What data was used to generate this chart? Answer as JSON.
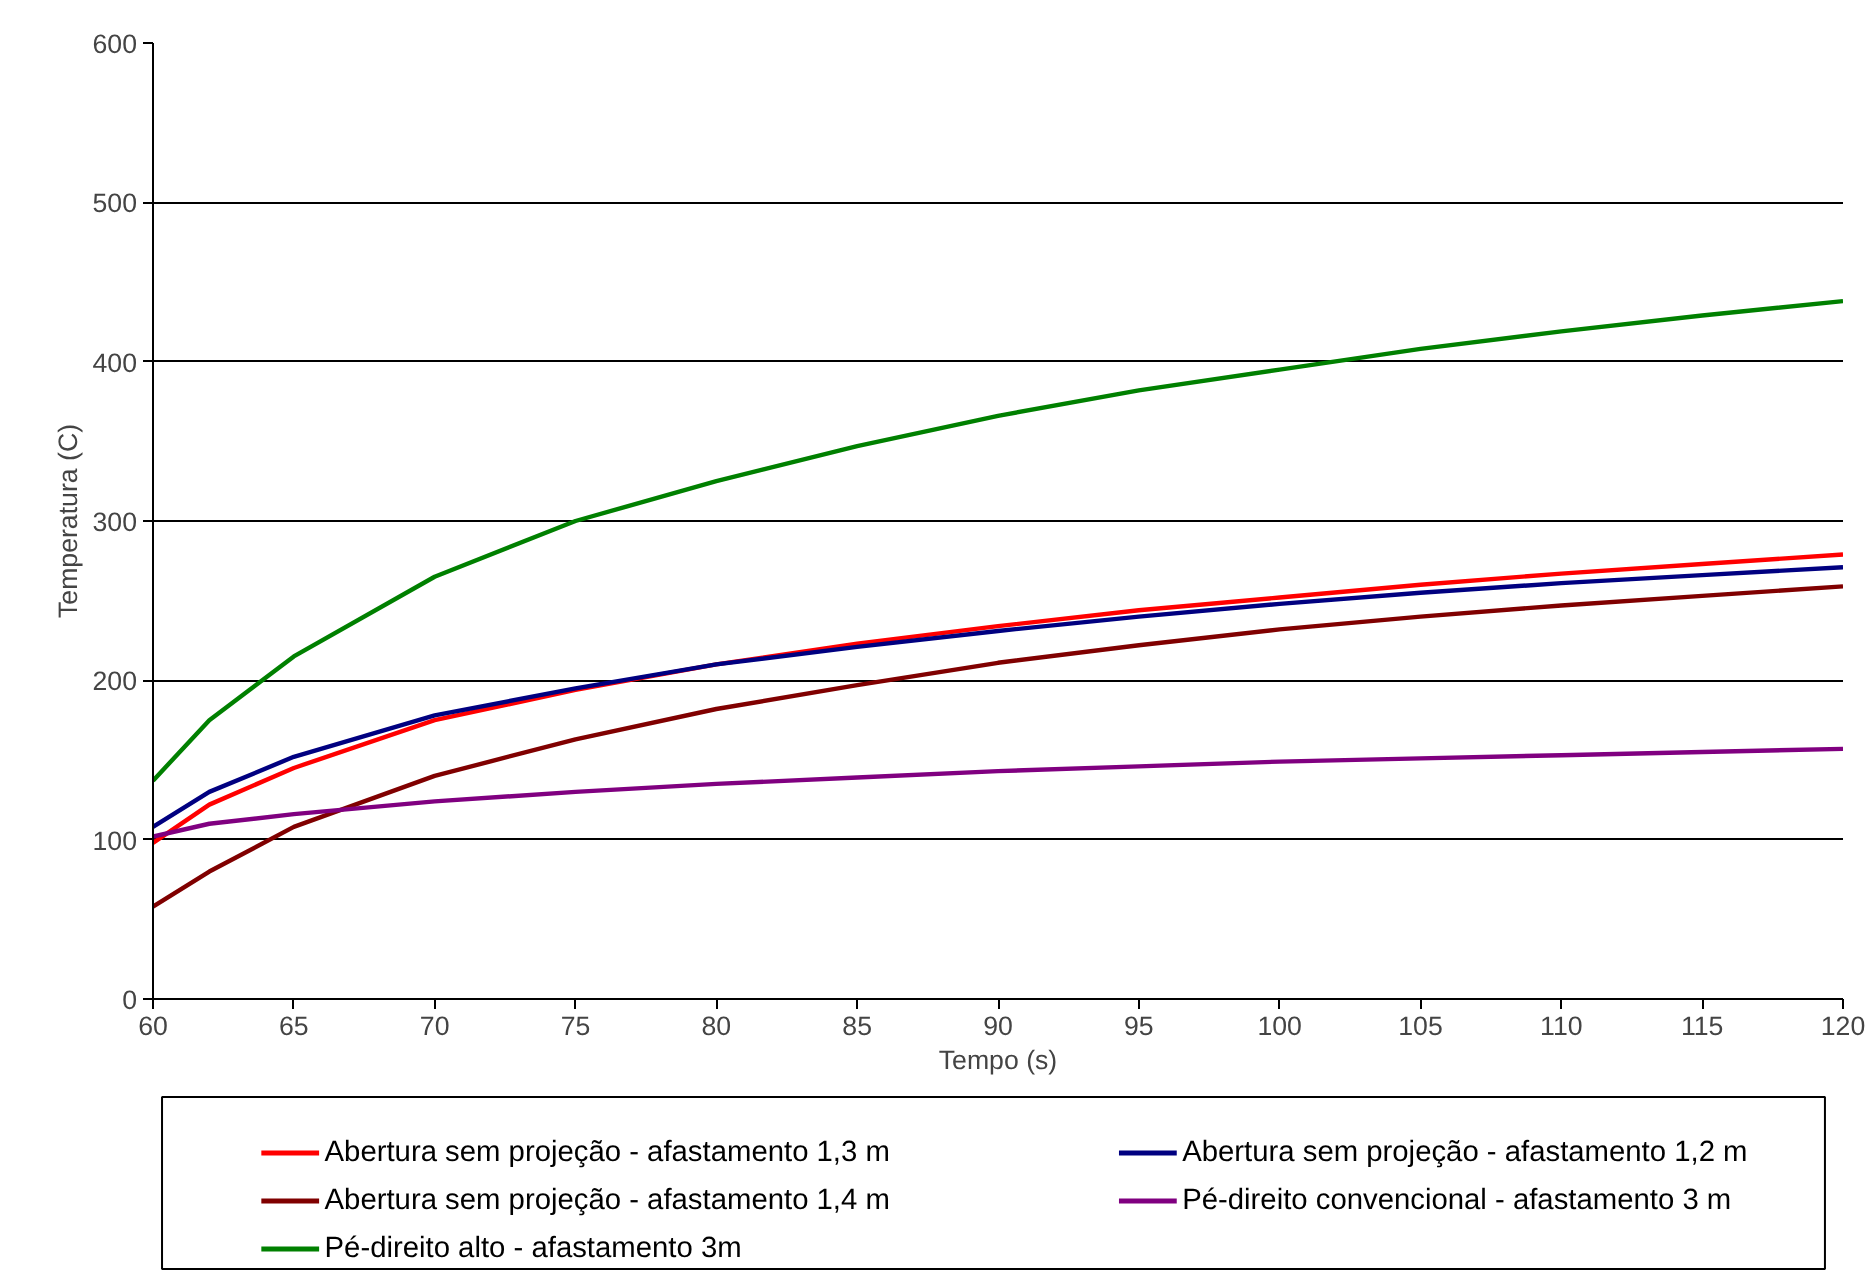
{
  "chart_data": {
    "type": "line",
    "xlabel": "Tempo (s)",
    "ylabel": "Temperatura (C)",
    "x": [
      60,
      62,
      65,
      70,
      75,
      80,
      85,
      90,
      95,
      100,
      105,
      110,
      115,
      120
    ],
    "series": [
      {
        "name": "Abertura sem projeção - afastamento 1,3 m",
        "color": "#ff0000",
        "values": [
          98,
          122,
          145,
          175,
          194,
          210,
          223,
          234,
          244,
          252,
          260,
          267,
          273,
          279
        ]
      },
      {
        "name": "Abertura sem projeção - afastamento 1,2 m",
        "color": "#000080",
        "values": [
          108,
          130,
          152,
          178,
          195,
          210,
          221,
          231,
          240,
          248,
          255,
          261,
          266,
          271
        ]
      },
      {
        "name": "Abertura sem projeção - afastamento 1,4 m",
        "color": "#800000",
        "values": [
          58,
          80,
          108,
          140,
          163,
          182,
          197,
          211,
          222,
          232,
          240,
          247,
          253,
          259
        ]
      },
      {
        "name": "Pé-direito convencional - afastamento 3 m",
        "color": "#800080",
        "values": [
          102,
          110,
          116,
          124,
          130,
          135,
          139,
          143,
          146,
          149,
          151,
          153,
          155,
          157
        ]
      },
      {
        "name": "Pé-direito alto - afastamento 3m",
        "color": "#008000",
        "values": [
          137,
          175,
          215,
          265,
          300,
          325,
          347,
          366,
          382,
          395,
          408,
          419,
          429,
          438
        ]
      }
    ],
    "xlim": [
      60,
      120
    ],
    "xticks": [
      60,
      65,
      70,
      75,
      80,
      85,
      90,
      95,
      100,
      105,
      110,
      115,
      120
    ],
    "ylim": [
      0,
      600
    ],
    "yticks": [
      0,
      100,
      200,
      300,
      400,
      500,
      600
    ],
    "grid": "y",
    "legend": "bottom",
    "marker": "none",
    "line_style": "solid"
  }
}
